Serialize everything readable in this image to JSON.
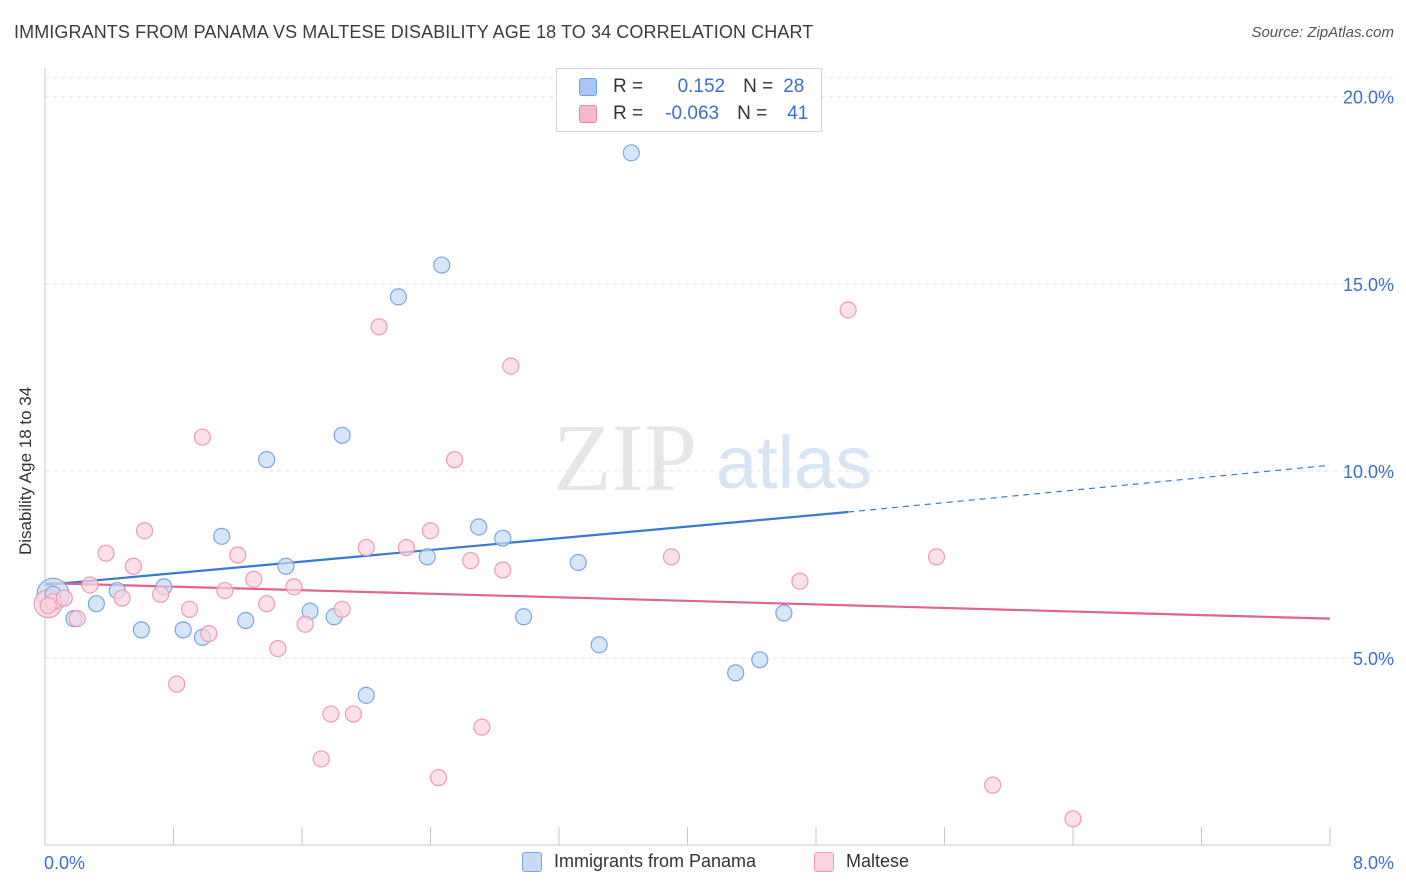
{
  "title": "IMMIGRANTS FROM PANAMA VS MALTESE DISABILITY AGE 18 TO 34 CORRELATION CHART",
  "source": "Source: ZipAtlas.com",
  "watermark": {
    "zip": "ZIP",
    "atlas": "atlas"
  },
  "legend": {
    "rows": [
      {
        "r_label": "R =",
        "r_value": "0.152",
        "n_label": "N =",
        "n_value": "28",
        "color": "#a8c8f0",
        "border": "#6d9ee0"
      },
      {
        "r_label": "R =",
        "r_value": "-0.063",
        "n_label": "N =",
        "n_value": "41",
        "color": "#f6b9cc",
        "border": "#e889a8"
      }
    ]
  },
  "bottom_legend": [
    {
      "label": "Immigrants from Panama",
      "color": "#c5dbf7",
      "border": "#7aa6e0"
    },
    {
      "label": "Maltese",
      "color": "#fcd3e0",
      "border": "#ee9ab5"
    }
  ],
  "chart_data": {
    "type": "scatter",
    "title": "IMMIGRANTS FROM PANAMA VS MALTESE DISABILITY AGE 18 TO 34 CORRELATION CHART",
    "xlabel": "",
    "ylabel": "Disability Age 18 to 34",
    "xlim": [
      0,
      8.0
    ],
    "ylim": [
      0,
      20.5
    ],
    "x_tick_labels": [
      "0.0%",
      "8.0%"
    ],
    "y_ticks": [
      5,
      10,
      15,
      20
    ],
    "y_tick_labels": [
      "5.0%",
      "10.0%",
      "15.0%",
      "20.0%"
    ],
    "grid": true,
    "legend_position": "top-center",
    "series": [
      {
        "name": "Immigrants from Panama",
        "color": "#7aa6e0",
        "fill": "#c5dbf7",
        "r": 0.152,
        "n": 28,
        "trend": {
          "x0": 0.0,
          "y0": 6.95,
          "x1": 5.0,
          "y1": 8.9,
          "dash_to_x": 8.0,
          "dash_to_y": 10.15,
          "color": "#3a78d4"
        },
        "points": [
          [
            0.05,
            6.7
          ],
          [
            0.18,
            6.05
          ],
          [
            0.32,
            6.45
          ],
          [
            0.45,
            6.8
          ],
          [
            0.6,
            5.75
          ],
          [
            0.74,
            6.9
          ],
          [
            0.86,
            5.75
          ],
          [
            0.98,
            5.55
          ],
          [
            1.1,
            8.25
          ],
          [
            1.25,
            6.0
          ],
          [
            1.38,
            10.3
          ],
          [
            1.5,
            7.45
          ],
          [
            1.65,
            6.25
          ],
          [
            1.8,
            6.1
          ],
          [
            1.85,
            10.95
          ],
          [
            2.0,
            4.0
          ],
          [
            2.2,
            14.65
          ],
          [
            2.38,
            7.7
          ],
          [
            2.47,
            15.5
          ],
          [
            2.7,
            8.5
          ],
          [
            2.85,
            8.2
          ],
          [
            2.98,
            6.1
          ],
          [
            3.32,
            7.55
          ],
          [
            3.45,
            5.35
          ],
          [
            3.65,
            18.5
          ],
          [
            4.3,
            4.6
          ],
          [
            4.45,
            4.95
          ],
          [
            4.6,
            6.2
          ]
        ]
      },
      {
        "name": "Maltese",
        "color": "#ee9ab5",
        "fill": "#fcd3e0",
        "r": -0.063,
        "n": 41,
        "trend": {
          "x0": 0.0,
          "y0": 7.0,
          "x1": 8.0,
          "y1": 6.05,
          "color": "#e0648e"
        },
        "points": [
          [
            0.05,
            6.5
          ],
          [
            0.12,
            6.6
          ],
          [
            0.2,
            6.05
          ],
          [
            0.28,
            6.95
          ],
          [
            0.38,
            7.8
          ],
          [
            0.48,
            6.6
          ],
          [
            0.55,
            7.45
          ],
          [
            0.62,
            8.4
          ],
          [
            0.72,
            6.7
          ],
          [
            0.82,
            4.3
          ],
          [
            0.9,
            6.3
          ],
          [
            0.98,
            10.9
          ],
          [
            1.02,
            5.65
          ],
          [
            1.12,
            6.8
          ],
          [
            1.2,
            7.75
          ],
          [
            1.3,
            7.1
          ],
          [
            1.38,
            6.45
          ],
          [
            1.45,
            5.25
          ],
          [
            1.55,
            6.9
          ],
          [
            1.62,
            5.9
          ],
          [
            1.72,
            2.3
          ],
          [
            1.78,
            3.5
          ],
          [
            1.85,
            6.3
          ],
          [
            1.92,
            3.5
          ],
          [
            2.0,
            7.95
          ],
          [
            2.08,
            13.85
          ],
          [
            2.25,
            7.95
          ],
          [
            2.4,
            8.4
          ],
          [
            2.45,
            1.8
          ],
          [
            2.55,
            10.3
          ],
          [
            2.65,
            7.6
          ],
          [
            2.72,
            3.15
          ],
          [
            2.85,
            7.35
          ],
          [
            2.9,
            12.8
          ],
          [
            3.9,
            7.7
          ],
          [
            4.7,
            7.05
          ],
          [
            5.0,
            14.3
          ],
          [
            5.55,
            7.7
          ],
          [
            5.9,
            1.6
          ],
          [
            6.4,
            0.7
          ],
          [
            0.02,
            6.4
          ]
        ]
      }
    ]
  }
}
